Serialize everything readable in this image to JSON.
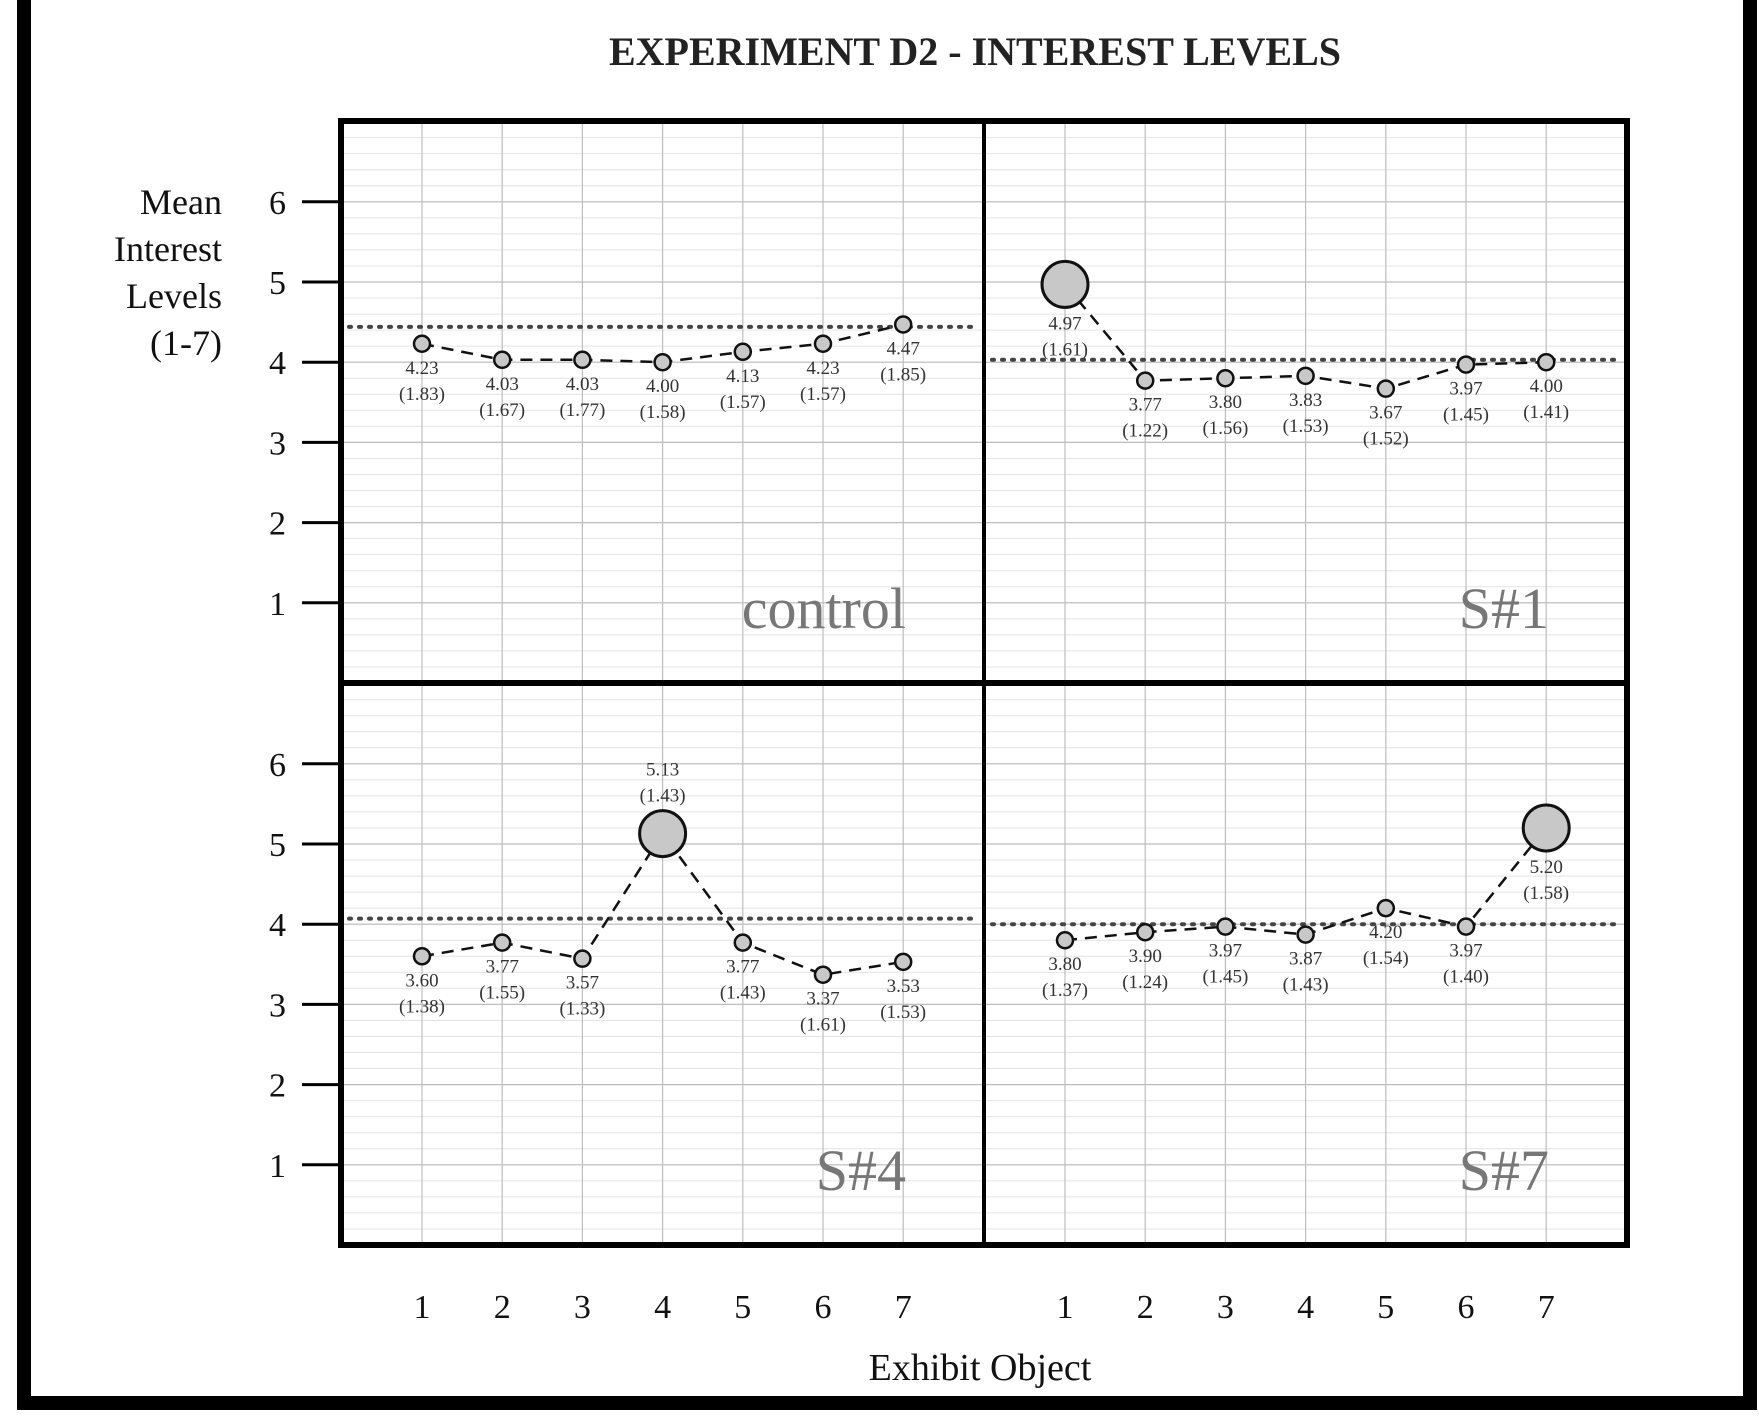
{
  "chart_data": {
    "type": "line",
    "title": "EXPERIMENT D2 - INTEREST LEVELS",
    "ylabel": [
      "Mean",
      "Interest",
      "Levels",
      "(1-7)"
    ],
    "xlabel": "Exhibit Object",
    "categories": [
      "1",
      "2",
      "3",
      "4",
      "5",
      "6",
      "7"
    ],
    "yticks": [
      1,
      2,
      3,
      4,
      5,
      6
    ],
    "ylim": [
      0,
      7
    ],
    "grid": true,
    "colors": {
      "marker_fill": "#c8c8c8",
      "reference": "#444444",
      "panel_label": "#777777",
      "grid": "#bdbdbd"
    },
    "panels": [
      {
        "name": "control",
        "values": [
          4.23,
          4.03,
          4.03,
          4.0,
          4.13,
          4.23,
          4.47
        ],
        "sd": [
          "(1.83)",
          "(1.67)",
          "(1.77)",
          "(1.58)",
          "(1.57)",
          "(1.57)",
          "(1.85)"
        ],
        "reference": 4.44,
        "highlight": null
      },
      {
        "name": "S#1",
        "values": [
          4.97,
          3.77,
          3.8,
          3.83,
          3.67,
          3.97,
          4.0
        ],
        "sd": [
          "(1.61)",
          "(1.22)",
          "(1.56)",
          "(1.53)",
          "(1.52)",
          "(1.45)",
          "(1.41)"
        ],
        "reference": 4.03,
        "highlight": 1
      },
      {
        "name": "S#4",
        "values": [
          3.6,
          3.77,
          3.57,
          5.13,
          3.77,
          3.37,
          3.53
        ],
        "sd": [
          "(1.38)",
          "(1.55)",
          "(1.33)",
          "(1.43)",
          "(1.43)",
          "(1.61)",
          "(1.53)"
        ],
        "reference": 4.07,
        "highlight": 4
      },
      {
        "name": "S#7",
        "values": [
          3.8,
          3.9,
          3.97,
          3.87,
          4.2,
          3.97,
          5.2
        ],
        "sd": [
          "(1.37)",
          "(1.24)",
          "(1.45)",
          "(1.43)",
          "(1.54)",
          "(1.40)",
          "(1.58)"
        ],
        "reference": 4.0,
        "highlight": 7
      }
    ]
  }
}
